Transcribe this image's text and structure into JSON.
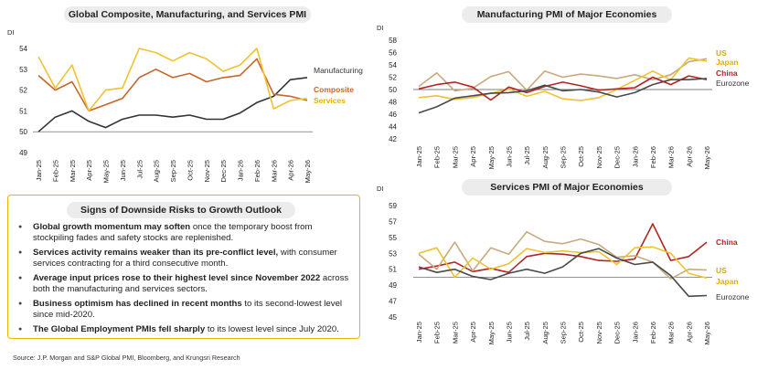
{
  "chart_data": [
    {
      "type": "line",
      "title": "Global Composite, Manufacturing, and Services PMI",
      "ylabel": "DI",
      "ylim": [
        49,
        54
      ],
      "ticks": [
        49,
        50,
        51,
        52,
        53,
        54
      ],
      "reference_line": 50,
      "categories": [
        "Jan-25",
        "Feb-25",
        "Mar-25",
        "Apr-25",
        "May-25",
        "Jun-25",
        "Jul-25",
        "Aug-25",
        "Sep-25",
        "Oct-25",
        "Nov-25",
        "Dec-25",
        "Jan-26",
        "Feb-26",
        "Mar-26",
        "Apr-26",
        "May-26"
      ],
      "series": [
        {
          "name": "Manufacturing",
          "color": "#333333",
          "values": [
            50.0,
            50.7,
            51.0,
            50.5,
            50.2,
            50.6,
            50.8,
            50.8,
            50.7,
            50.8,
            50.6,
            50.6,
            50.9,
            51.4,
            51.7,
            52.5,
            52.6
          ]
        },
        {
          "name": "Composite",
          "color": "#c8662a",
          "values": [
            52.7,
            52.0,
            52.4,
            51.0,
            51.3,
            51.6,
            52.6,
            53.0,
            52.6,
            52.8,
            52.4,
            52.6,
            52.7,
            53.5,
            51.8,
            51.7,
            51.5
          ]
        },
        {
          "name": "Services",
          "color": "#f0c232",
          "values": [
            53.6,
            52.1,
            53.2,
            51.0,
            52.0,
            52.1,
            54.0,
            53.8,
            53.4,
            53.8,
            53.5,
            52.9,
            53.2,
            54.0,
            51.1,
            51.5,
            51.6
          ]
        }
      ]
    },
    {
      "type": "line",
      "title": "Manufacturing PMI of Major Economies",
      "ylabel": "DI",
      "ylim": [
        42,
        58
      ],
      "ticks": [
        42,
        44,
        46,
        48,
        50,
        52,
        54,
        56,
        58
      ],
      "reference_line": 50,
      "categories": [
        "Jan-25",
        "Feb-25",
        "Mar-25",
        "Apr-25",
        "May-25",
        "Jun-25",
        "Jul-25",
        "Aug-25",
        "Sep-25",
        "Oct-25",
        "Nov-25",
        "Dec-25",
        "Jan-26",
        "Feb-26",
        "Mar-26",
        "Apr-26",
        "May-26"
      ],
      "series": [
        {
          "name": "US",
          "color": "#c7ab7c",
          "values": [
            50.5,
            52.7,
            49.8,
            50.2,
            52.1,
            52.9,
            49.9,
            53.0,
            52.0,
            52.5,
            52.2,
            51.8,
            52.4,
            51.6,
            52.4,
            54.5,
            55.0
          ]
        },
        {
          "name": "Japan",
          "color": "#f0c232",
          "values": [
            48.7,
            49.0,
            48.4,
            48.7,
            49.4,
            50.1,
            48.9,
            49.7,
            48.5,
            48.2,
            48.7,
            50.0,
            51.5,
            53.0,
            51.6,
            55.1,
            54.6
          ]
        },
        {
          "name": "China",
          "color": "#b32525",
          "values": [
            50.1,
            50.8,
            51.2,
            50.4,
            48.3,
            50.4,
            49.5,
            50.5,
            51.2,
            50.6,
            49.9,
            50.1,
            50.3,
            52.0,
            50.8,
            52.2,
            51.6
          ]
        },
        {
          "name": "Eurozone",
          "color": "#4a4a4a",
          "values": [
            46.2,
            47.2,
            48.6,
            49.0,
            49.4,
            49.5,
            49.8,
            50.7,
            49.8,
            50.0,
            49.6,
            48.8,
            49.5,
            50.8,
            51.6,
            51.6,
            51.8
          ]
        }
      ]
    },
    {
      "type": "line",
      "title": "Services PMI of Major Economies",
      "ylabel": "DI",
      "ylim": [
        45,
        59
      ],
      "ticks": [
        45,
        47,
        49,
        51,
        53,
        55,
        57,
        59
      ],
      "reference_line": 50,
      "categories": [
        "Jan-25",
        "Feb-25",
        "Mar-25",
        "Apr-25",
        "May-25",
        "Jun-25",
        "Jul-25",
        "Aug-25",
        "Sep-25",
        "Oct-25",
        "Nov-25",
        "Dec-25",
        "Jan-26",
        "Feb-26",
        "Mar-26",
        "Apr-26",
        "May-26"
      ],
      "series": [
        {
          "name": "China",
          "color": "#b32525",
          "values": [
            51.0,
            51.4,
            51.9,
            50.7,
            51.1,
            50.6,
            52.6,
            53.0,
            52.9,
            52.6,
            52.1,
            52.0,
            52.3,
            56.7,
            52.1,
            52.6,
            54.4
          ]
        },
        {
          "name": "US",
          "color": "#c7ab7c",
          "values": [
            52.9,
            51.0,
            54.4,
            50.8,
            53.7,
            52.9,
            55.7,
            54.5,
            54.2,
            54.8,
            54.1,
            52.5,
            52.7,
            51.9,
            49.8,
            51.0,
            50.9
          ]
        },
        {
          "name": "Japan",
          "color": "#f0c232",
          "values": [
            53.0,
            53.7,
            50.0,
            52.4,
            51.0,
            51.7,
            53.6,
            53.1,
            53.3,
            53.1,
            53.2,
            51.6,
            53.7,
            53.8,
            53.0,
            50.5,
            49.9
          ]
        },
        {
          "name": "Eurozone",
          "color": "#4a4a4a",
          "values": [
            51.3,
            50.6,
            51.0,
            50.1,
            49.7,
            50.5,
            51.0,
            50.5,
            51.3,
            53.0,
            53.6,
            52.4,
            51.6,
            51.9,
            50.2,
            47.6,
            47.7
          ]
        }
      ]
    }
  ],
  "risks": {
    "title": "Signs of Downside Risks to Growth Outlook",
    "items": [
      {
        "bold": "Global growth momentum may soften",
        "text": " once the temporary boost from stockpiling fades and safety stocks are replenished."
      },
      {
        "bold": "Services activity remains weaker than its pre-conflict level,",
        "text": " with consumer services contracting for a third consecutive month."
      },
      {
        "bold": "Average input prices rose to their highest level since November 2022",
        "text": " across both the manufacturing and services sectors."
      },
      {
        "bold": "Business optimism has declined in recent months",
        "text": " to its second-lowest level since mid-2020."
      },
      {
        "bold": "The Global Employment PMIs fell sharply",
        "text": " to its lowest level since July 2020."
      }
    ]
  },
  "source": "Source: J.P. Morgan and S&P Global PMI, Bloomberg, and Krungsri Research"
}
